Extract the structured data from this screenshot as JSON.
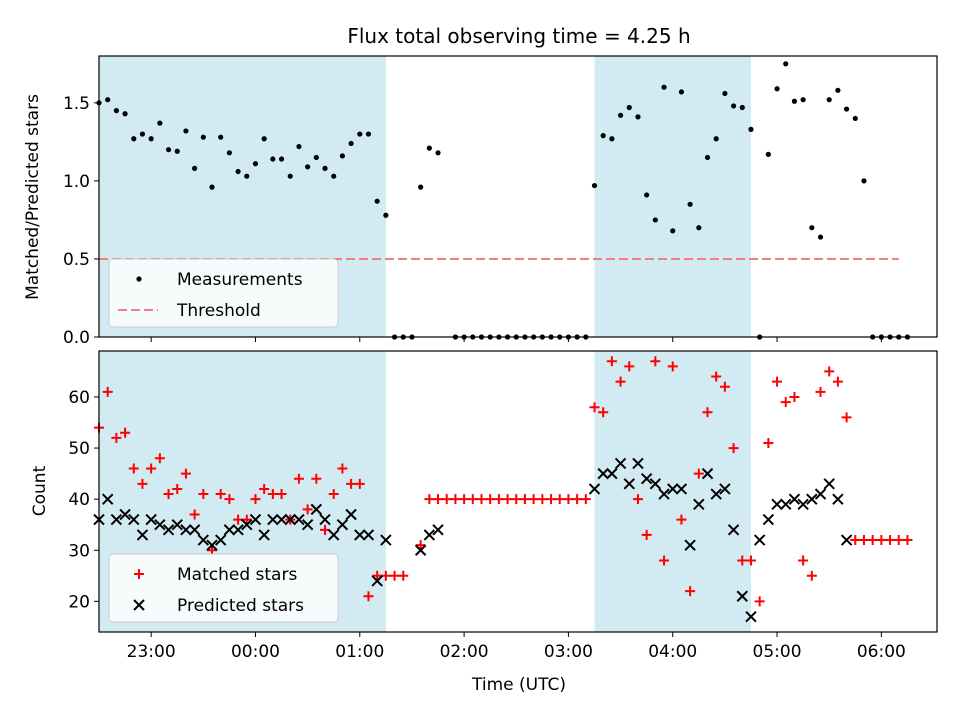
{
  "colors": {
    "band": "#add8e6",
    "measurement": "#000000",
    "threshold": "#f08080",
    "matched": "#ff0000",
    "predicted": "#000000"
  },
  "chart_data": [
    {
      "type": "scatter",
      "title": "Flux total observing time = 4.25 h",
      "xlabel": "",
      "ylabel": "Matched/Predicted stars",
      "ylim": [
        0,
        1.8
      ],
      "yticks": [
        "0.0",
        "0.5",
        "1.0",
        "1.5"
      ],
      "xlim": [
        "22:30",
        "06:32"
      ],
      "shaded_bands": [
        [
          "22:30",
          "01:15"
        ],
        [
          "03:15",
          "04:45"
        ]
      ],
      "threshold": 0.5,
      "threshold_range": [
        "22:30",
        "06:10"
      ],
      "legend": {
        "placement": "lower left",
        "entries": [
          "Measurements",
          "Threshold"
        ]
      },
      "series": [
        {
          "name": "Measurements",
          "points": [
            [
              "22:30",
              1.5
            ],
            [
              "22:35",
              1.52
            ],
            [
              "22:40",
              1.45
            ],
            [
              "22:45",
              1.43
            ],
            [
              "22:50",
              1.27
            ],
            [
              "22:55",
              1.3
            ],
            [
              "23:00",
              1.27
            ],
            [
              "23:05",
              1.37
            ],
            [
              "23:10",
              1.2
            ],
            [
              "23:15",
              1.19
            ],
            [
              "23:20",
              1.32
            ],
            [
              "23:25",
              1.08
            ],
            [
              "23:30",
              1.28
            ],
            [
              "23:35",
              0.96
            ],
            [
              "23:40",
              1.28
            ],
            [
              "23:45",
              1.18
            ],
            [
              "23:50",
              1.06
            ],
            [
              "23:55",
              1.03
            ],
            [
              "00:00",
              1.11
            ],
            [
              "00:05",
              1.27
            ],
            [
              "00:10",
              1.14
            ],
            [
              "00:15",
              1.14
            ],
            [
              "00:20",
              1.03
            ],
            [
              "00:25",
              1.22
            ],
            [
              "00:30",
              1.09
            ],
            [
              "00:35",
              1.15
            ],
            [
              "00:40",
              1.08
            ],
            [
              "00:45",
              1.03
            ],
            [
              "00:50",
              1.16
            ],
            [
              "00:55",
              1.24
            ],
            [
              "01:00",
              1.3
            ],
            [
              "01:05",
              1.3
            ],
            [
              "01:10",
              0.87
            ],
            [
              "01:15",
              0.78
            ],
            [
              "01:20",
              0
            ],
            [
              "01:25",
              0
            ],
            [
              "01:30",
              0
            ],
            [
              "01:35",
              0.96
            ],
            [
              "01:40",
              1.21
            ],
            [
              "01:45",
              1.18
            ],
            [
              "01:55",
              0
            ],
            [
              "02:00",
              0
            ],
            [
              "02:05",
              0
            ],
            [
              "02:10",
              0
            ],
            [
              "02:15",
              0
            ],
            [
              "02:20",
              0
            ],
            [
              "02:25",
              0
            ],
            [
              "02:30",
              0
            ],
            [
              "02:35",
              0
            ],
            [
              "02:40",
              0
            ],
            [
              "02:45",
              0
            ],
            [
              "02:50",
              0
            ],
            [
              "02:55",
              0
            ],
            [
              "03:00",
              0
            ],
            [
              "03:05",
              0
            ],
            [
              "03:10",
              0
            ],
            [
              "03:15",
              0.97
            ],
            [
              "03:20",
              1.29
            ],
            [
              "03:25",
              1.27
            ],
            [
              "03:30",
              1.42
            ],
            [
              "03:35",
              1.47
            ],
            [
              "03:40",
              1.41
            ],
            [
              "03:45",
              0.91
            ],
            [
              "03:50",
              0.75
            ],
            [
              "03:55",
              1.6
            ],
            [
              "04:00",
              0.68
            ],
            [
              "04:05",
              1.57
            ],
            [
              "04:10",
              0.85
            ],
            [
              "04:15",
              0.7
            ],
            [
              "04:20",
              1.15
            ],
            [
              "04:25",
              1.27
            ],
            [
              "04:30",
              1.56
            ],
            [
              "04:35",
              1.48
            ],
            [
              "04:40",
              1.47
            ],
            [
              "04:45",
              1.33
            ],
            [
              "04:50",
              0
            ],
            [
              "04:55",
              1.17
            ],
            [
              "05:00",
              1.59
            ],
            [
              "05:05",
              1.75
            ],
            [
              "05:10",
              1.51
            ],
            [
              "05:15",
              1.52
            ],
            [
              "05:20",
              0.7
            ],
            [
              "05:25",
              0.64
            ],
            [
              "05:30",
              1.52
            ],
            [
              "05:35",
              1.58
            ],
            [
              "05:40",
              1.46
            ],
            [
              "05:45",
              1.4
            ],
            [
              "05:50",
              1.0
            ],
            [
              "05:55",
              0
            ],
            [
              "06:00",
              0
            ],
            [
              "06:05",
              0
            ],
            [
              "06:10",
              0
            ],
            [
              "06:15",
              0
            ]
          ]
        }
      ]
    },
    {
      "type": "scatter",
      "title": "",
      "xlabel": "Time (UTC)",
      "ylabel": "Count",
      "ylim": [
        14,
        69
      ],
      "yticks": [
        "20",
        "30",
        "40",
        "50",
        "60"
      ],
      "xlim": [
        "22:30",
        "06:32"
      ],
      "xticks": [
        "23:00",
        "00:00",
        "01:00",
        "02:00",
        "03:00",
        "04:00",
        "05:00",
        "06:00"
      ],
      "shaded_bands": [
        [
          "22:30",
          "01:15"
        ],
        [
          "03:15",
          "04:45"
        ]
      ],
      "legend": {
        "placement": "lower left",
        "entries": [
          "Matched stars",
          "Predicted stars"
        ]
      },
      "series": [
        {
          "name": "Matched stars",
          "points": [
            [
              "22:30",
              54
            ],
            [
              "22:35",
              61
            ],
            [
              "22:40",
              52
            ],
            [
              "22:45",
              53
            ],
            [
              "22:50",
              46
            ],
            [
              "22:55",
              43
            ],
            [
              "23:00",
              46
            ],
            [
              "23:05",
              48
            ],
            [
              "23:10",
              41
            ],
            [
              "23:15",
              42
            ],
            [
              "23:20",
              45
            ],
            [
              "23:25",
              37
            ],
            [
              "23:30",
              41
            ],
            [
              "23:35",
              30
            ],
            [
              "23:40",
              41
            ],
            [
              "23:45",
              40
            ],
            [
              "23:50",
              36
            ],
            [
              "23:55",
              36
            ],
            [
              "00:00",
              40
            ],
            [
              "00:05",
              42
            ],
            [
              "00:10",
              41
            ],
            [
              "00:15",
              41
            ],
            [
              "00:20",
              36
            ],
            [
              "00:25",
              44
            ],
            [
              "00:30",
              38
            ],
            [
              "00:35",
              44
            ],
            [
              "00:40",
              34
            ],
            [
              "00:45",
              41
            ],
            [
              "00:50",
              46
            ],
            [
              "00:55",
              43
            ],
            [
              "01:00",
              43
            ],
            [
              "01:05",
              21
            ],
            [
              "01:10",
              25
            ],
            [
              "01:15",
              25
            ],
            [
              "01:20",
              25
            ],
            [
              "01:25",
              25
            ],
            [
              "01:35",
              31
            ],
            [
              "01:40",
              40
            ],
            [
              "01:45",
              40
            ],
            [
              "01:50",
              40
            ],
            [
              "01:55",
              40
            ],
            [
              "02:00",
              40
            ],
            [
              "02:05",
              40
            ],
            [
              "02:10",
              40
            ],
            [
              "02:15",
              40
            ],
            [
              "02:20",
              40
            ],
            [
              "02:25",
              40
            ],
            [
              "02:30",
              40
            ],
            [
              "02:35",
              40
            ],
            [
              "02:40",
              40
            ],
            [
              "02:45",
              40
            ],
            [
              "02:50",
              40
            ],
            [
              "02:55",
              40
            ],
            [
              "03:00",
              40
            ],
            [
              "03:05",
              40
            ],
            [
              "03:10",
              40
            ],
            [
              "03:15",
              58
            ],
            [
              "03:20",
              57
            ],
            [
              "03:25",
              67
            ],
            [
              "03:30",
              63
            ],
            [
              "03:35",
              66
            ],
            [
              "03:40",
              40
            ],
            [
              "03:45",
              33
            ],
            [
              "03:50",
              67
            ],
            [
              "03:55",
              28
            ],
            [
              "04:00",
              66
            ],
            [
              "04:05",
              36
            ],
            [
              "04:10",
              22
            ],
            [
              "04:15",
              45
            ],
            [
              "04:20",
              57
            ],
            [
              "04:25",
              64
            ],
            [
              "04:30",
              62
            ],
            [
              "04:35",
              50
            ],
            [
              "04:40",
              28
            ],
            [
              "04:45",
              28
            ],
            [
              "04:50",
              20
            ],
            [
              "04:55",
              51
            ],
            [
              "05:00",
              63
            ],
            [
              "05:05",
              59
            ],
            [
              "05:10",
              60
            ],
            [
              "05:15",
              28
            ],
            [
              "05:20",
              25
            ],
            [
              "05:25",
              61
            ],
            [
              "05:30",
              65
            ],
            [
              "05:35",
              63
            ],
            [
              "05:40",
              56
            ],
            [
              "05:45",
              32
            ],
            [
              "05:50",
              32
            ],
            [
              "05:55",
              32
            ],
            [
              "06:00",
              32
            ],
            [
              "06:05",
              32
            ],
            [
              "06:10",
              32
            ],
            [
              "06:15",
              32
            ]
          ]
        },
        {
          "name": "Predicted stars",
          "points": [
            [
              "22:30",
              36
            ],
            [
              "22:35",
              40
            ],
            [
              "22:40",
              36
            ],
            [
              "22:45",
              37
            ],
            [
              "22:50",
              36
            ],
            [
              "22:55",
              33
            ],
            [
              "23:00",
              36
            ],
            [
              "23:05",
              35
            ],
            [
              "23:10",
              34
            ],
            [
              "23:15",
              35
            ],
            [
              "23:20",
              34
            ],
            [
              "23:25",
              34
            ],
            [
              "23:30",
              32
            ],
            [
              "23:35",
              31
            ],
            [
              "23:40",
              32
            ],
            [
              "23:45",
              34
            ],
            [
              "23:50",
              34
            ],
            [
              "23:55",
              35
            ],
            [
              "00:00",
              36
            ],
            [
              "00:05",
              33
            ],
            [
              "00:10",
              36
            ],
            [
              "00:15",
              36
            ],
            [
              "00:20",
              36
            ],
            [
              "00:25",
              36
            ],
            [
              "00:30",
              35
            ],
            [
              "00:35",
              38
            ],
            [
              "00:40",
              36
            ],
            [
              "00:45",
              33
            ],
            [
              "00:50",
              35
            ],
            [
              "00:55",
              37
            ],
            [
              "01:00",
              33
            ],
            [
              "01:05",
              33
            ],
            [
              "01:10",
              24
            ],
            [
              "01:15",
              32
            ],
            [
              "01:35",
              30
            ],
            [
              "01:40",
              33
            ],
            [
              "01:45",
              34
            ],
            [
              "03:15",
              42
            ],
            [
              "03:20",
              45
            ],
            [
              "03:25",
              45
            ],
            [
              "03:30",
              47
            ],
            [
              "03:35",
              43
            ],
            [
              "03:40",
              47
            ],
            [
              "03:45",
              44
            ],
            [
              "03:50",
              43
            ],
            [
              "03:55",
              41
            ],
            [
              "04:00",
              42
            ],
            [
              "04:05",
              42
            ],
            [
              "04:10",
              31
            ],
            [
              "04:15",
              39
            ],
            [
              "04:20",
              45
            ],
            [
              "04:25",
              41
            ],
            [
              "04:30",
              42
            ],
            [
              "04:35",
              34
            ],
            [
              "04:40",
              21
            ],
            [
              "04:45",
              17
            ],
            [
              "04:50",
              32
            ],
            [
              "04:55",
              36
            ],
            [
              "05:00",
              39
            ],
            [
              "05:05",
              39
            ],
            [
              "05:10",
              40
            ],
            [
              "05:15",
              39
            ],
            [
              "05:20",
              40
            ],
            [
              "05:25",
              41
            ],
            [
              "05:30",
              43
            ],
            [
              "05:35",
              40
            ],
            [
              "05:40",
              32
            ]
          ]
        }
      ]
    }
  ]
}
